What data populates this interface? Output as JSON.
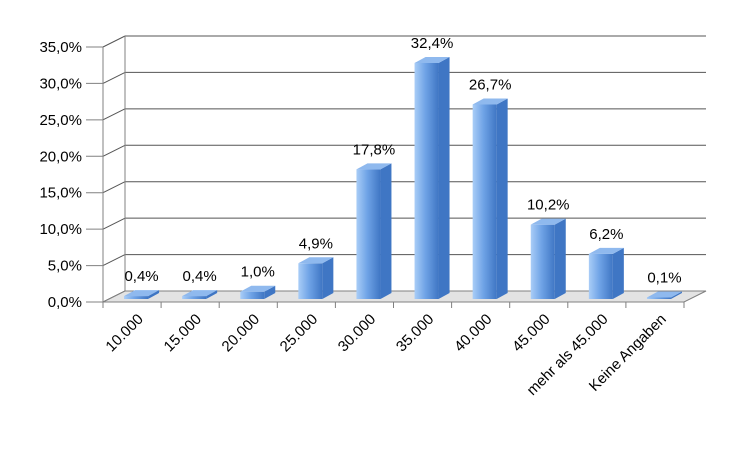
{
  "chart_data": {
    "type": "bar",
    "title": "",
    "xlabel": "",
    "ylabel": "",
    "categories": [
      "10.000",
      "15.000",
      "20.000",
      "25.000",
      "30.000",
      "35.000",
      "40.000",
      "45.000",
      "mehr als 45.000",
      "Keine Angaben"
    ],
    "values": [
      0.4,
      0.4,
      1.0,
      4.9,
      17.8,
      32.4,
      26.7,
      10.2,
      6.2,
      0.1
    ],
    "value_labels": [
      "0,4%",
      "0,4%",
      "1,0%",
      "4,9%",
      "17,8%",
      "32,4%",
      "26,7%",
      "10,2%",
      "6,2%",
      "0,1%"
    ],
    "ylim": [
      0,
      35
    ],
    "yticks": [
      0,
      5,
      10,
      15,
      20,
      25,
      30,
      35
    ],
    "ytick_labels": [
      "0,0%",
      "5,0%",
      "10,0%",
      "15,0%",
      "20,0%",
      "25,0%",
      "30,0%",
      "35,0%"
    ],
    "grid": true,
    "legend": "none",
    "style": "3d-column",
    "colors": {
      "bar_light": "#a9cdf7",
      "bar_mid": "#6fa3e6",
      "bar_dark": "#3f76c4",
      "bar_top": "#8fb9ee",
      "grid": "#555555",
      "axis": "#808080"
    }
  }
}
